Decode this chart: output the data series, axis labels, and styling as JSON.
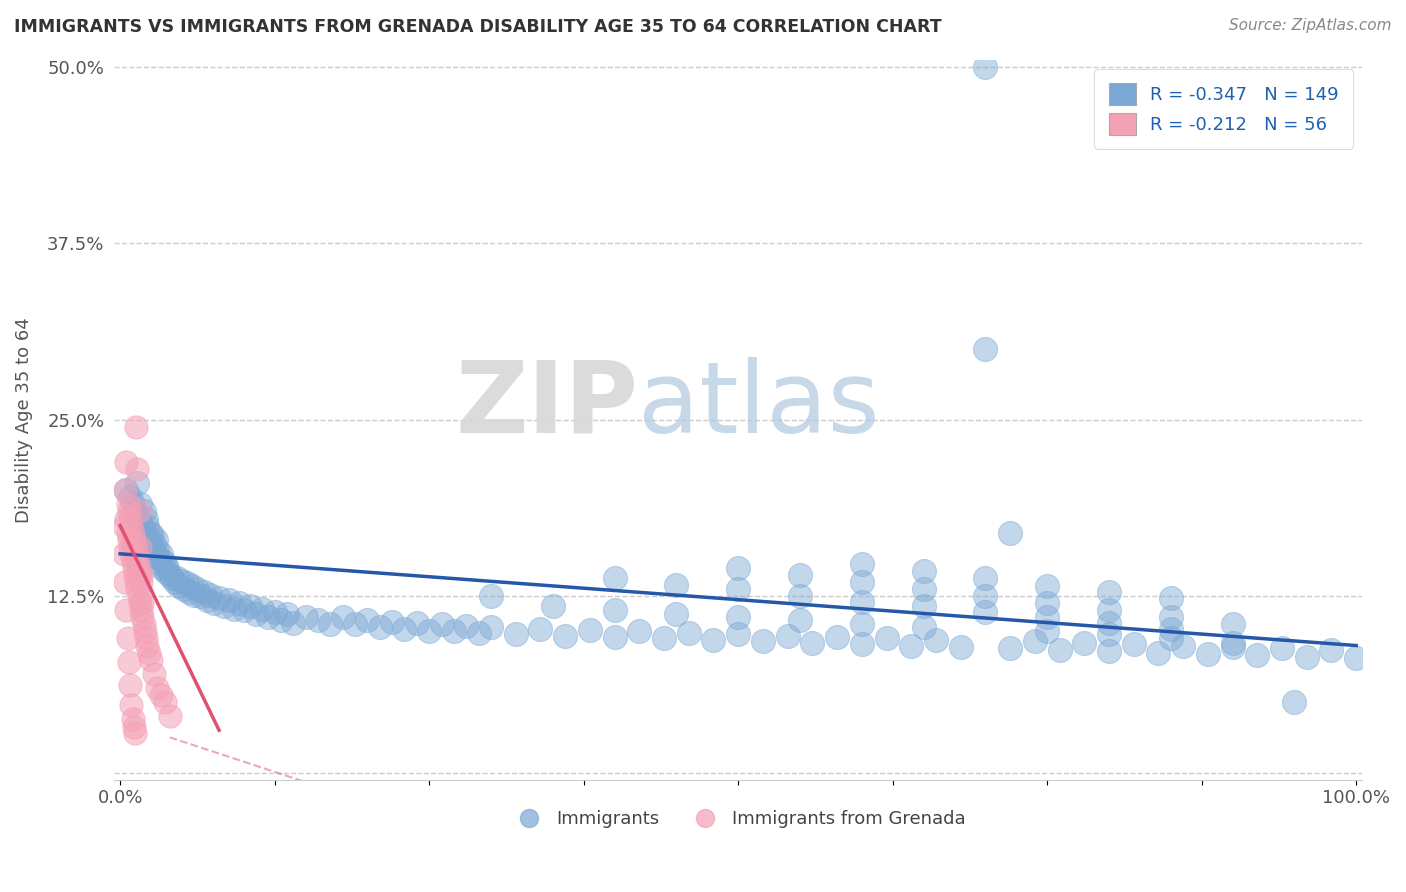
{
  "title": "IMMIGRANTS VS IMMIGRANTS FROM GRENADA DISABILITY AGE 35 TO 64 CORRELATION CHART",
  "source": "Source: ZipAtlas.com",
  "ylabel": "Disability Age 35 to 64",
  "xlim": [
    -0.005,
    1.005
  ],
  "ylim": [
    -0.005,
    0.505
  ],
  "xticks": [
    0.0,
    0.125,
    0.25,
    0.375,
    0.5,
    0.625,
    0.75,
    0.875,
    1.0
  ],
  "yticks": [
    0.0,
    0.125,
    0.25,
    0.375,
    0.5
  ],
  "blue_R": -0.347,
  "blue_N": 149,
  "pink_R": -0.212,
  "pink_N": 56,
  "blue_color": "#7ba7d4",
  "pink_color": "#f4a0b5",
  "blue_line_color": "#2558a8",
  "pink_line_color": "#e05070",
  "watermark_zip": "ZIP",
  "watermark_atlas": "atlas",
  "blue_scatter_x": [
    0.005,
    0.008,
    0.01,
    0.012,
    0.014,
    0.015,
    0.016,
    0.018,
    0.019,
    0.02,
    0.021,
    0.022,
    0.023,
    0.024,
    0.025,
    0.026,
    0.027,
    0.028,
    0.029,
    0.03,
    0.031,
    0.032,
    0.033,
    0.034,
    0.035,
    0.036,
    0.037,
    0.038,
    0.04,
    0.042,
    0.044,
    0.046,
    0.048,
    0.05,
    0.052,
    0.054,
    0.056,
    0.058,
    0.06,
    0.062,
    0.065,
    0.068,
    0.07,
    0.073,
    0.076,
    0.08,
    0.084,
    0.088,
    0.092,
    0.096,
    0.1,
    0.105,
    0.11,
    0.115,
    0.12,
    0.125,
    0.13,
    0.135,
    0.14,
    0.15,
    0.16,
    0.17,
    0.18,
    0.19,
    0.2,
    0.21,
    0.22,
    0.23,
    0.24,
    0.25,
    0.26,
    0.27,
    0.28,
    0.29,
    0.3,
    0.32,
    0.34,
    0.36,
    0.38,
    0.4,
    0.42,
    0.44,
    0.46,
    0.48,
    0.5,
    0.52,
    0.54,
    0.56,
    0.58,
    0.6,
    0.62,
    0.64,
    0.66,
    0.68,
    0.7,
    0.72,
    0.74,
    0.76,
    0.78,
    0.8,
    0.82,
    0.84,
    0.86,
    0.88,
    0.9,
    0.92,
    0.94,
    0.96,
    0.98,
    1.0,
    0.3,
    0.35,
    0.4,
    0.45,
    0.5,
    0.55,
    0.6,
    0.65,
    0.7,
    0.75,
    0.8,
    0.85,
    0.9,
    0.95,
    0.4,
    0.45,
    0.5,
    0.55,
    0.6,
    0.65,
    0.7,
    0.75,
    0.8,
    0.85,
    0.5,
    0.55,
    0.6,
    0.65,
    0.7,
    0.75,
    0.8,
    0.85,
    0.9,
    0.6,
    0.65,
    0.7,
    0.75,
    0.8,
    0.72,
    0.85
  ],
  "blue_scatter_y": [
    0.2,
    0.195,
    0.19,
    0.185,
    0.205,
    0.18,
    0.19,
    0.175,
    0.185,
    0.17,
    0.18,
    0.175,
    0.165,
    0.17,
    0.16,
    0.168,
    0.162,
    0.155,
    0.165,
    0.158,
    0.152,
    0.148,
    0.155,
    0.145,
    0.15,
    0.148,
    0.142,
    0.145,
    0.14,
    0.138,
    0.135,
    0.138,
    0.132,
    0.136,
    0.13,
    0.134,
    0.128,
    0.132,
    0.126,
    0.13,
    0.125,
    0.128,
    0.122,
    0.126,
    0.12,
    0.124,
    0.118,
    0.122,
    0.116,
    0.12,
    0.115,
    0.118,
    0.112,
    0.116,
    0.11,
    0.114,
    0.108,
    0.112,
    0.106,
    0.11,
    0.108,
    0.105,
    0.11,
    0.105,
    0.108,
    0.103,
    0.107,
    0.102,
    0.106,
    0.1,
    0.105,
    0.1,
    0.104,
    0.099,
    0.103,
    0.098,
    0.102,
    0.097,
    0.101,
    0.096,
    0.1,
    0.095,
    0.099,
    0.094,
    0.098,
    0.093,
    0.097,
    0.092,
    0.096,
    0.091,
    0.095,
    0.09,
    0.094,
    0.089,
    0.3,
    0.088,
    0.093,
    0.087,
    0.092,
    0.086,
    0.091,
    0.085,
    0.09,
    0.084,
    0.089,
    0.083,
    0.088,
    0.082,
    0.087,
    0.081,
    0.125,
    0.118,
    0.115,
    0.112,
    0.11,
    0.108,
    0.105,
    0.103,
    0.5,
    0.1,
    0.098,
    0.095,
    0.092,
    0.05,
    0.138,
    0.133,
    0.13,
    0.125,
    0.121,
    0.118,
    0.114,
    0.11,
    0.106,
    0.102,
    0.145,
    0.14,
    0.135,
    0.13,
    0.125,
    0.12,
    0.115,
    0.11,
    0.105,
    0.148,
    0.143,
    0.138,
    0.132,
    0.128,
    0.17,
    0.124
  ],
  "pink_scatter_x": [
    0.003,
    0.004,
    0.005,
    0.005,
    0.006,
    0.006,
    0.007,
    0.007,
    0.008,
    0.008,
    0.009,
    0.009,
    0.01,
    0.01,
    0.011,
    0.011,
    0.012,
    0.012,
    0.013,
    0.013,
    0.014,
    0.014,
    0.015,
    0.015,
    0.016,
    0.016,
    0.017,
    0.017,
    0.018,
    0.019,
    0.02,
    0.021,
    0.022,
    0.023,
    0.025,
    0.027,
    0.03,
    0.033,
    0.036,
    0.04,
    0.003,
    0.004,
    0.005,
    0.006,
    0.007,
    0.008,
    0.009,
    0.01,
    0.011,
    0.012,
    0.013,
    0.014,
    0.015,
    0.016,
    0.017,
    0.018
  ],
  "pink_scatter_y": [
    0.175,
    0.2,
    0.18,
    0.22,
    0.17,
    0.19,
    0.165,
    0.185,
    0.16,
    0.18,
    0.155,
    0.175,
    0.15,
    0.17,
    0.145,
    0.165,
    0.14,
    0.16,
    0.135,
    0.155,
    0.13,
    0.15,
    0.125,
    0.145,
    0.12,
    0.14,
    0.115,
    0.135,
    0.11,
    0.105,
    0.1,
    0.095,
    0.09,
    0.085,
    0.08,
    0.07,
    0.06,
    0.055,
    0.05,
    0.04,
    0.155,
    0.135,
    0.115,
    0.095,
    0.078,
    0.062,
    0.048,
    0.038,
    0.032,
    0.028,
    0.245,
    0.215,
    0.185,
    0.16,
    0.14,
    0.12
  ],
  "blue_line_x": [
    0.0,
    1.0
  ],
  "blue_line_y_start": 0.155,
  "blue_line_y_end": 0.09,
  "pink_line_x": [
    0.0,
    0.08
  ],
  "pink_line_y_start": 0.175,
  "pink_line_y_end": 0.03
}
